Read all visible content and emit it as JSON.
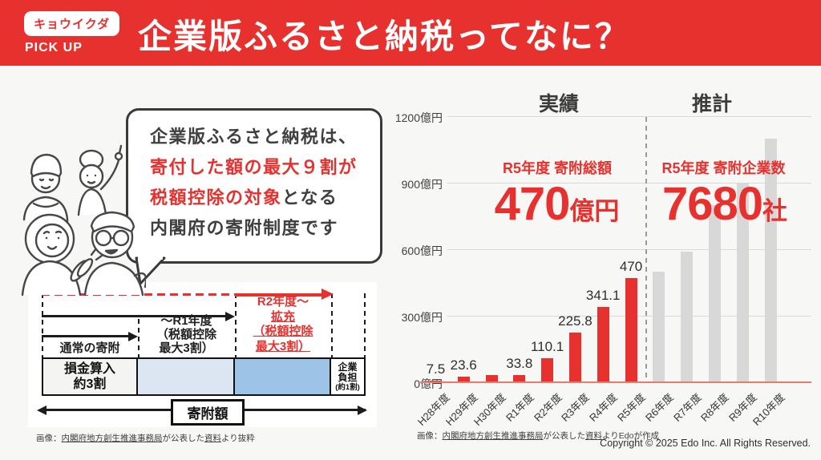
{
  "colors": {
    "accent_red": "#e6312e",
    "bar_gray": "#d8d8d8",
    "deduction_blue_light": "#dce6f2",
    "deduction_blue_mid": "#9dc3e6"
  },
  "header": {
    "badge": "キョウイクダ",
    "badge_sub": "PICK UP",
    "title": "企業版ふるさと納税ってなに？"
  },
  "bubble": {
    "line1": "企業版ふるさと納税は、",
    "line2": "寄付した額の最大９割が",
    "line3_red": "税額控除の対象",
    "line3_dark": "となる",
    "line4": "内閣府の寄附制度です"
  },
  "diagram": {
    "normal_label": "通常の寄附",
    "mid_label_lines": [
      "～R1年度",
      "（税額控除",
      "最大3割）"
    ],
    "expand_label_lines": [
      {
        "text": "R2年度～",
        "underline": false
      },
      {
        "text": "拡充",
        "underline": true
      },
      {
        "text": "（税額控除",
        "underline": true
      },
      {
        "text": "最大3割）",
        "underline": true
      }
    ],
    "section1_lines": [
      "損金算入",
      "約3割"
    ],
    "section4_lines": [
      "企業",
      "負担",
      "(約1割)"
    ],
    "total_label": "寄附額",
    "caption_parts": [
      {
        "text": "画像：",
        "u": false
      },
      {
        "text": "内閣府地方創生推進事務局",
        "u": true
      },
      {
        "text": "が公表した",
        "u": false
      },
      {
        "text": "資料",
        "u": true
      },
      {
        "text": "より抜粋",
        "u": false
      }
    ]
  },
  "chart": {
    "heading_actual": "実績",
    "heading_estimate": "推計",
    "stat_total": {
      "label": "R5年度 寄附総額",
      "value": "470",
      "unit": "億円"
    },
    "stat_companies": {
      "label": "R5年度 寄附企業数",
      "value": "7680",
      "unit": "社"
    },
    "caption_parts": [
      {
        "text": "画像：",
        "u": false
      },
      {
        "text": "内閣府地方創生推進事務局",
        "u": true
      },
      {
        "text": "が公表した",
        "u": false
      },
      {
        "text": "資料",
        "u": true
      },
      {
        "text": "よりEdoが作成",
        "u": false
      }
    ]
  },
  "chart_data": {
    "type": "bar",
    "title": "",
    "xlabel": "",
    "ylabel": "",
    "ylim": [
      0,
      1200
    ],
    "yticks": [
      {
        "value": 0,
        "label": "0億円"
      },
      {
        "value": 300,
        "label": "300億円"
      },
      {
        "value": 600,
        "label": "600億円"
      },
      {
        "value": 900,
        "label": "900億円"
      },
      {
        "value": 1200,
        "label": "1200億円"
      }
    ],
    "categories": [
      "H28年度",
      "H29年度",
      "H30年度",
      "R1年度",
      "R2年度",
      "R3年度",
      "R4年度",
      "R5年度",
      "R6年度",
      "R7年度",
      "R8年度",
      "R9年度",
      "R10年度"
    ],
    "values": [
      7.5,
      23.6,
      34,
      33.8,
      110.1,
      225.8,
      341.1,
      470,
      500,
      590,
      800,
      900,
      1100
    ],
    "bar_labels": [
      "7.5",
      "23.6",
      "",
      "33.8",
      "110.1",
      "225.8",
      "341.1",
      "470",
      "",
      "",
      "",
      "",
      ""
    ],
    "bar_types": [
      "actual",
      "actual",
      "actual",
      "actual",
      "actual",
      "actual",
      "actual",
      "actual",
      "estimate",
      "estimate",
      "estimate",
      "estimate",
      "estimate"
    ],
    "sections": [
      {
        "name": "実績",
        "bars": 8
      },
      {
        "name": "推計",
        "bars": 5
      }
    ],
    "grid": true,
    "legend": false
  },
  "footer": {
    "copyright": "Copyright © 2025 Edo Inc. All Rights Reserved."
  }
}
